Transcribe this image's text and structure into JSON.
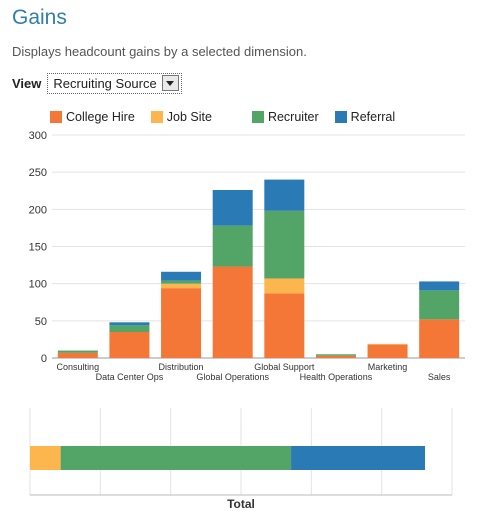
{
  "header": {
    "title": "Gains",
    "subtitle": "Displays headcount gains by a selected dimension.",
    "view_label": "View",
    "view_value": "Recruiting Source"
  },
  "chart_data": [
    {
      "type": "bar",
      "stacked": true,
      "categories": [
        "Consulting",
        "Data Center Ops",
        "Distribution",
        "Global Operations",
        "Global Support",
        "Health Operations",
        "Marketing",
        "Sales"
      ],
      "series": [
        {
          "name": "College Hire",
          "color": "#f47738",
          "values": [
            7,
            35,
            94,
            123,
            87,
            3,
            18,
            52
          ]
        },
        {
          "name": "Job Site",
          "color": "#fdb64d",
          "values": [
            0,
            0,
            6,
            0,
            20,
            0,
            1,
            0
          ]
        },
        {
          "name": "Recruiter",
          "color": "#52a566",
          "values": [
            3,
            9,
            4,
            55,
            91,
            2,
            0,
            39
          ]
        },
        {
          "name": "Referral",
          "color": "#2a7ab5",
          "values": [
            0,
            4,
            12,
            48,
            42,
            0,
            0,
            12
          ]
        }
      ],
      "ylim": [
        0,
        300
      ],
      "yticks": [
        0,
        50,
        100,
        150,
        200,
        250,
        300
      ],
      "legend": "top",
      "grid": true
    },
    {
      "type": "bar",
      "orientation": "horizontal",
      "stacked": true,
      "categories": [
        "Total"
      ],
      "series": [
        {
          "name": "Job Site",
          "color": "#fdb64d",
          "values": [
            27
          ]
        },
        {
          "name": "Recruiter",
          "color": "#52a566",
          "values": [
            203
          ]
        },
        {
          "name": "Referral",
          "color": "#2a7ab5",
          "values": [
            118
          ]
        }
      ],
      "xlabel": "Total",
      "grid": true
    }
  ]
}
